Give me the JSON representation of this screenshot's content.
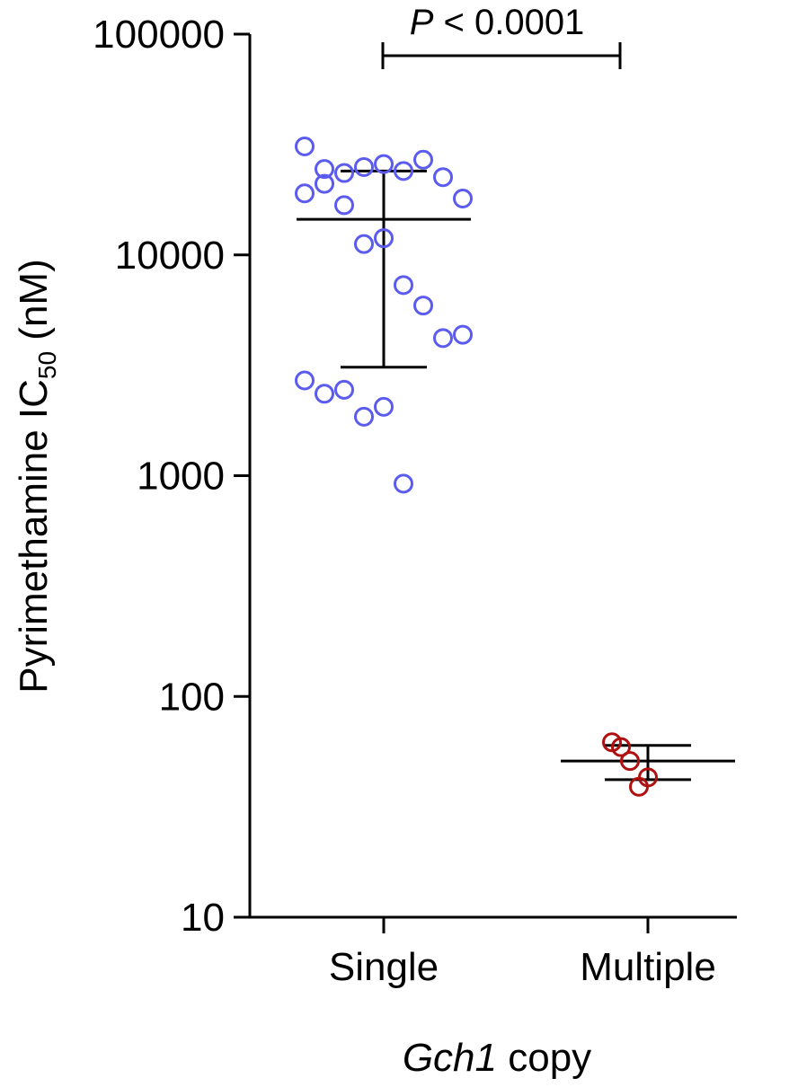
{
  "chart_data": {
    "type": "scatter",
    "y_scale": "log",
    "ylim": [
      10,
      100000
    ],
    "y_ticks": [
      {
        "value": 10,
        "label": "10"
      },
      {
        "value": 100,
        "label": "100"
      },
      {
        "value": 1000,
        "label": "1000"
      },
      {
        "value": 10000,
        "label": "10000"
      },
      {
        "value": 100000,
        "label": "100000"
      }
    ],
    "categories": [
      "Single",
      "Multiple"
    ],
    "ylabel": {
      "main": "Pyrimethamine IC",
      "sub": "50",
      "unit": " (nM)"
    },
    "xlabel": {
      "italic": "Gch1",
      "rest": " copy"
    },
    "grid": false,
    "legend": "none",
    "series": [
      {
        "category": "Single",
        "color": "#5b5bef",
        "points": [
          {
            "x": "Single",
            "y": 31000
          },
          {
            "x": "Single",
            "y": 24500
          },
          {
            "x": "Single",
            "y": 23500
          },
          {
            "x": "Single",
            "y": 25000
          },
          {
            "x": "Single",
            "y": 25800
          },
          {
            "x": "Single",
            "y": 24000
          },
          {
            "x": "Single",
            "y": 27000
          },
          {
            "x": "Single",
            "y": 22500
          },
          {
            "x": "Single",
            "y": 18000
          },
          {
            "x": "Single",
            "y": 19000
          },
          {
            "x": "Single",
            "y": 21000
          },
          {
            "x": "Single",
            "y": 16800
          },
          {
            "x": "Single",
            "y": 11200
          },
          {
            "x": "Single",
            "y": 11900
          },
          {
            "x": "Single",
            "y": 7300
          },
          {
            "x": "Single",
            "y": 5900
          },
          {
            "x": "Single",
            "y": 4200
          },
          {
            "x": "Single",
            "y": 4350
          },
          {
            "x": "Single",
            "y": 2700
          },
          {
            "x": "Single",
            "y": 2350
          },
          {
            "x": "Single",
            "y": 2450
          },
          {
            "x": "Single",
            "y": 1850
          },
          {
            "x": "Single",
            "y": 2050
          },
          {
            "x": "Single",
            "y": 920
          }
        ],
        "mean": 14500,
        "error_low": 3100,
        "error_high": 24000
      },
      {
        "category": "Multiple",
        "color": "#b01010",
        "points": [
          {
            "x": "Multiple",
            "y": 62
          },
          {
            "x": "Multiple",
            "y": 59
          },
          {
            "x": "Multiple",
            "y": 51
          },
          {
            "x": "Multiple",
            "y": 39
          },
          {
            "x": "Multiple",
            "y": 43
          }
        ],
        "mean": 51,
        "error_low": 42,
        "error_high": 60
      }
    ],
    "annotation": {
      "italic": "P",
      "rest": " < 0.0001"
    }
  }
}
